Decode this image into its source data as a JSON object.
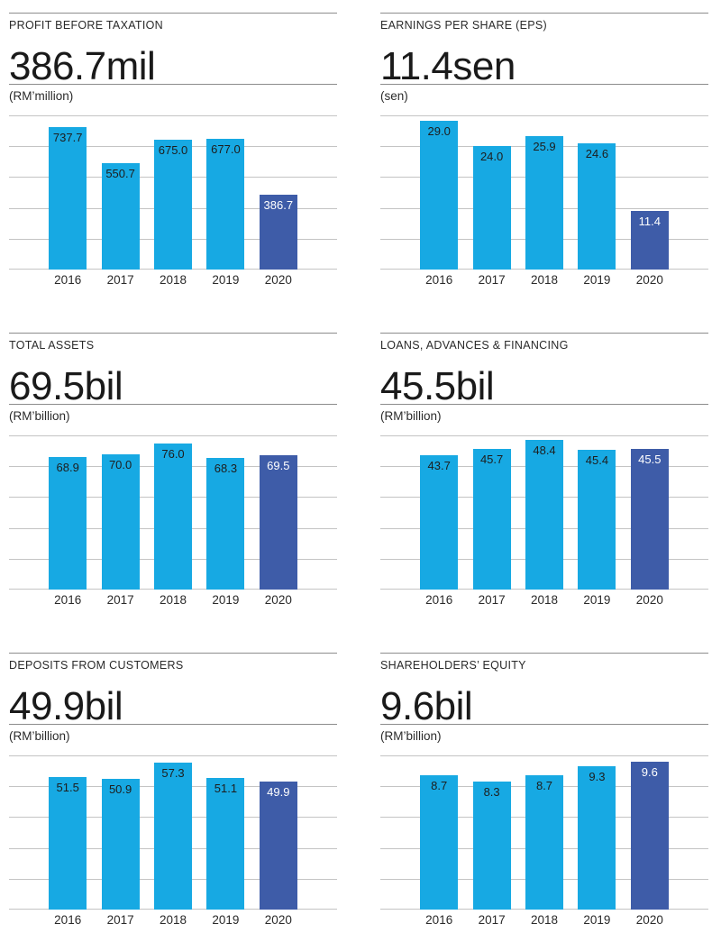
{
  "page": {
    "background": "#ffffff"
  },
  "colors": {
    "bar": "#17a9e3",
    "bar_highlight": "#3e5ca8",
    "bar_label": "#1d1d1d",
    "bar_label_highlight": "#ffffff",
    "gridline": "#c4c4c4",
    "rule": "#8c8c8c",
    "text": "#2a2a2a",
    "headline_text": "#1a1a1a"
  },
  "chart_data": [
    {
      "type": "bar",
      "title": "PROFIT BEFORE TAXATION",
      "headline": "386.7mil",
      "unit_label": "(RM’million)",
      "categories": [
        "2016",
        "2017",
        "2018",
        "2019",
        "2020"
      ],
      "values": [
        737.7,
        550.7,
        675.0,
        677.0,
        386.7
      ],
      "value_labels": [
        "737.7",
        "550.7",
        "675.0",
        "677.0",
        "386.7"
      ],
      "ylim": [
        0,
        800
      ],
      "gridline_intervals": 5,
      "highlight_index": 4,
      "legend": "none",
      "grid": "horizontal"
    },
    {
      "type": "bar",
      "title": "EARNINGS PER SHARE (EPS)",
      "headline": "11.4sen",
      "unit_label": "(sen)",
      "categories": [
        "2016",
        "2017",
        "2018",
        "2019",
        "2020"
      ],
      "values": [
        29.0,
        24.0,
        25.9,
        24.6,
        11.4
      ],
      "value_labels": [
        "29.0",
        "24.0",
        "25.9",
        "24.6",
        "11.4"
      ],
      "ylim": [
        0,
        30
      ],
      "gridline_intervals": 5,
      "highlight_index": 4,
      "legend": "none",
      "grid": "horizontal"
    },
    {
      "type": "bar",
      "title": "TOTAL ASSETS",
      "headline": "69.5bil",
      "unit_label": "(RM’billion)",
      "categories": [
        "2016",
        "2017",
        "2018",
        "2019",
        "2020"
      ],
      "values": [
        68.9,
        70.0,
        76.0,
        68.3,
        69.5
      ],
      "value_labels": [
        "68.9",
        "70.0",
        "76.0",
        "68.3",
        "69.5"
      ],
      "ylim": [
        0,
        80
      ],
      "gridline_intervals": 5,
      "highlight_index": 4,
      "legend": "none",
      "grid": "horizontal"
    },
    {
      "type": "bar",
      "title": "LOANS, ADVANCES & FINANCING",
      "headline": "45.5bil",
      "unit_label": "(RM’billion)",
      "categories": [
        "2016",
        "2017",
        "2018",
        "2019",
        "2020"
      ],
      "values": [
        43.7,
        45.7,
        48.4,
        45.4,
        45.5
      ],
      "value_labels": [
        "43.7",
        "45.7",
        "48.4",
        "45.4",
        "45.5"
      ],
      "ylim": [
        0,
        50
      ],
      "gridline_intervals": 5,
      "highlight_index": 4,
      "legend": "none",
      "grid": "horizontal"
    },
    {
      "type": "bar",
      "title": "DEPOSITS FROM CUSTOMERS",
      "headline": "49.9bil",
      "unit_label": "(RM’billion)",
      "categories": [
        "2016",
        "2017",
        "2018",
        "2019",
        "2020"
      ],
      "values": [
        51.5,
        50.9,
        57.3,
        51.1,
        49.9
      ],
      "value_labels": [
        "51.5",
        "50.9",
        "57.3",
        "51.1",
        "49.9"
      ],
      "ylim": [
        0,
        60
      ],
      "gridline_intervals": 5,
      "highlight_index": 4,
      "legend": "none",
      "grid": "horizontal"
    },
    {
      "type": "bar",
      "title": "SHAREHOLDERS’ EQUITY",
      "headline": "9.6bil",
      "unit_label": "(RM’billion)",
      "categories": [
        "2016",
        "2017",
        "2018",
        "2019",
        "2020"
      ],
      "values": [
        8.7,
        8.3,
        8.7,
        9.3,
        9.6
      ],
      "value_labels": [
        "8.7",
        "8.3",
        "8.7",
        "9.3",
        "9.6"
      ],
      "ylim": [
        0,
        10
      ],
      "gridline_intervals": 5,
      "highlight_index": 4,
      "legend": "none",
      "grid": "horizontal"
    }
  ]
}
